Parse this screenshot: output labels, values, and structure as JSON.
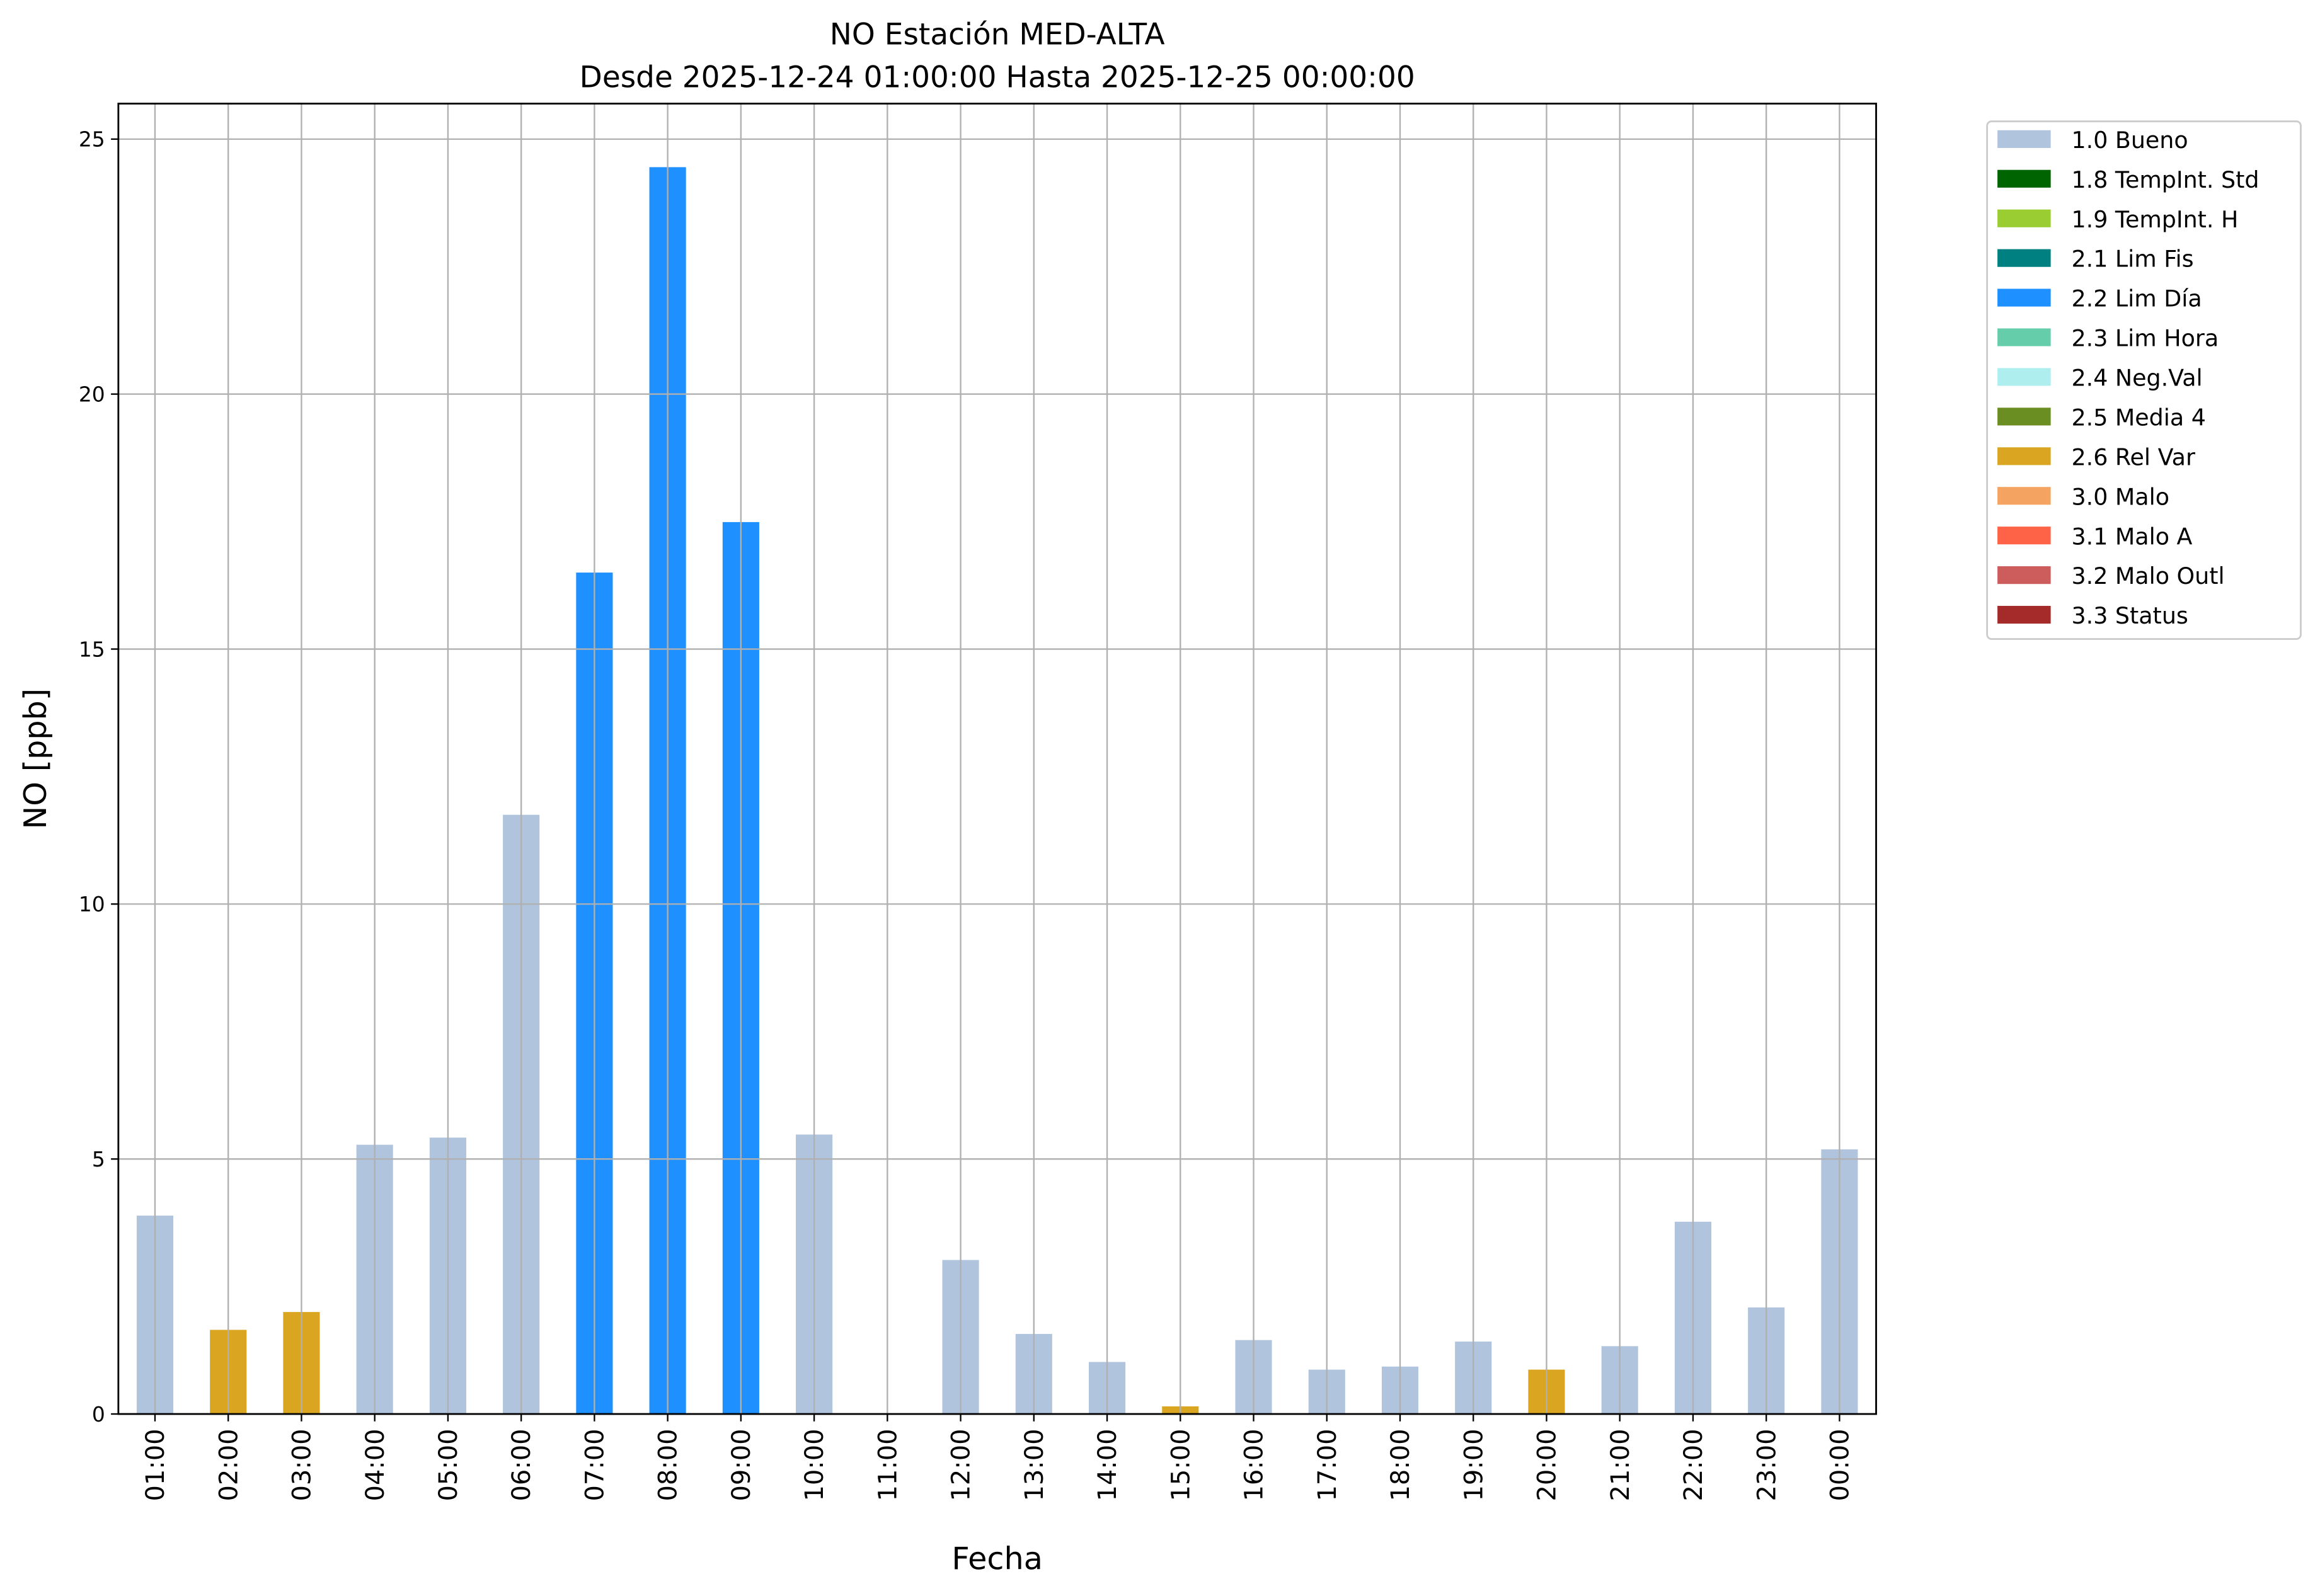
{
  "chart_data": {
    "type": "bar",
    "title": "NO Estación MED-ALTA",
    "subtitle": "Desde 2025-12-24 01:00:00 Hasta 2025-12-25 00:00:00",
    "xlabel": "Fecha",
    "ylabel": "NO [ppb]",
    "ylim": [
      0,
      25.6
    ],
    "yticks": [
      0,
      5,
      10,
      15,
      20,
      25
    ],
    "grid": true,
    "legend_placement": "outside-top-right",
    "categories": [
      "01:00",
      "02:00",
      "03:00",
      "04:00",
      "05:00",
      "06:00",
      "07:00",
      "08:00",
      "09:00",
      "10:00",
      "11:00",
      "12:00",
      "13:00",
      "14:00",
      "15:00",
      "16:00",
      "17:00",
      "18:00",
      "19:00",
      "20:00",
      "21:00",
      "22:00",
      "23:00",
      "00:00"
    ],
    "values": [
      3.89,
      1.65,
      2.0,
      5.28,
      5.42,
      11.75,
      16.5,
      24.45,
      17.49,
      5.48,
      null,
      3.02,
      1.57,
      1.02,
      0.15,
      1.45,
      0.87,
      0.93,
      1.42,
      0.87,
      1.33,
      3.77,
      2.09,
      5.19
    ],
    "flags": [
      "1.0 Bueno",
      "2.6 Rel Var",
      "2.6 Rel Var",
      "1.0 Bueno",
      "1.0 Bueno",
      "1.0 Bueno",
      "2.2 Lim Día",
      "2.2 Lim Día",
      "2.2 Lim Día",
      "1.0 Bueno",
      null,
      "1.0 Bueno",
      "1.0 Bueno",
      "1.0 Bueno",
      "2.6 Rel Var",
      "1.0 Bueno",
      "1.0 Bueno",
      "1.0 Bueno",
      "1.0 Bueno",
      "2.6 Rel Var",
      "1.0 Bueno",
      "1.0 Bueno",
      "1.0 Bueno",
      "1.0 Bueno"
    ],
    "legend": [
      {
        "label": "1.0 Bueno",
        "color": "#b0c4de"
      },
      {
        "label": "1.8 TempInt. Std",
        "color": "#006400"
      },
      {
        "label": "1.9 TempInt. H",
        "color": "#9acd32"
      },
      {
        "label": "2.1 Lim Fis",
        "color": "#008080"
      },
      {
        "label": "2.2 Lim Día",
        "color": "#1e90ff"
      },
      {
        "label": "2.3 Lim Hora",
        "color": "#66cdaa"
      },
      {
        "label": "2.4 Neg.Val",
        "color": "#afeeee"
      },
      {
        "label": "2.5 Media 4",
        "color": "#6b8e23"
      },
      {
        "label": "2.6 Rel Var",
        "color": "#daa520"
      },
      {
        "label": "3.0 Malo",
        "color": "#f4a460"
      },
      {
        "label": "3.1 Malo A",
        "color": "#ff6347"
      },
      {
        "label": "3.2 Malo Outl",
        "color": "#cd5c5c"
      },
      {
        "label": "3.3 Status",
        "color": "#a52a2a"
      }
    ]
  }
}
